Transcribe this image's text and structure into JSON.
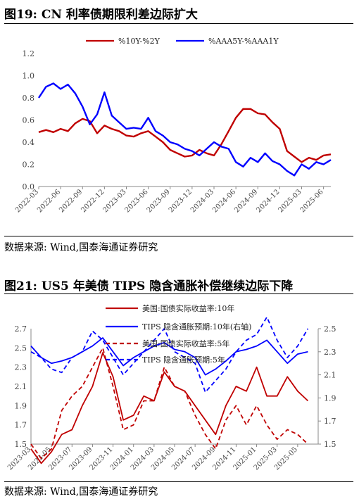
{
  "figures": [
    {
      "title": "图19:  CN 利率债期限利差边际扩大",
      "source": "数据来源:  Wind,国泰海通证券研究"
    },
    {
      "title": "图21:  US5 年美债 TIPS 隐含通胀补偿继续边际下降",
      "source": "数据来源:  Wind,国泰海通证券研究"
    }
  ],
  "chart_data": [
    {
      "type": "line",
      "title": "",
      "xlabel": "",
      "ylabel": "",
      "ylim": [
        0,
        1.2
      ],
      "yticks": [
        "0.0",
        "0.2",
        "0.4",
        "0.6",
        "0.8",
        "1.0",
        "1.2"
      ],
      "xticks": [
        "2022-03",
        "2022-06",
        "2022-09",
        "2022-12",
        "2023-03",
        "2023-06",
        "2023-09",
        "2023-12",
        "2024-03",
        "2024-06",
        "2024-09",
        "2024-12",
        "2025-03",
        "2025-06"
      ],
      "grid": false,
      "legend": "top",
      "series": [
        {
          "name": "%10Y-%2Y",
          "color": "#c00000",
          "points": [
            [
              "2022-03",
              0.49
            ],
            [
              "2022-04",
              0.51
            ],
            [
              "2022-05",
              0.49
            ],
            [
              "2022-06",
              0.52
            ],
            [
              "2022-07",
              0.5
            ],
            [
              "2022-08",
              0.57
            ],
            [
              "2022-09",
              0.61
            ],
            [
              "2022-10",
              0.59
            ],
            [
              "2022-11",
              0.48
            ],
            [
              "2022-12",
              0.55
            ],
            [
              "2023-01",
              0.52
            ],
            [
              "2023-02",
              0.5
            ],
            [
              "2023-03",
              0.46
            ],
            [
              "2023-04",
              0.45
            ],
            [
              "2023-05",
              0.48
            ],
            [
              "2023-06",
              0.5
            ],
            [
              "2023-07",
              0.45
            ],
            [
              "2023-08",
              0.4
            ],
            [
              "2023-09",
              0.33
            ],
            [
              "2023-10",
              0.3
            ],
            [
              "2023-11",
              0.27
            ],
            [
              "2023-12",
              0.28
            ],
            [
              "2024-01",
              0.33
            ],
            [
              "2024-02",
              0.3
            ],
            [
              "2024-03",
              0.28
            ],
            [
              "2024-04",
              0.38
            ],
            [
              "2024-05",
              0.5
            ],
            [
              "2024-06",
              0.62
            ],
            [
              "2024-07",
              0.7
            ],
            [
              "2024-08",
              0.7
            ],
            [
              "2024-09",
              0.66
            ],
            [
              "2024-10",
              0.65
            ],
            [
              "2024-11",
              0.58
            ],
            [
              "2024-12",
              0.52
            ],
            [
              "2025-01",
              0.32
            ],
            [
              "2025-02",
              0.27
            ],
            [
              "2025-03",
              0.22
            ],
            [
              "2025-04",
              0.26
            ],
            [
              "2025-05",
              0.24
            ],
            [
              "2025-06",
              0.28
            ],
            [
              "2025-07",
              0.29
            ]
          ]
        },
        {
          "name": "%AAA5Y-%AAA1Y",
          "color": "#0000ff",
          "points": [
            [
              "2022-03",
              0.8
            ],
            [
              "2022-04",
              0.9
            ],
            [
              "2022-05",
              0.93
            ],
            [
              "2022-06",
              0.88
            ],
            [
              "2022-07",
              0.92
            ],
            [
              "2022-08",
              0.84
            ],
            [
              "2022-09",
              0.72
            ],
            [
              "2022-10",
              0.56
            ],
            [
              "2022-11",
              0.65
            ],
            [
              "2022-12",
              0.85
            ],
            [
              "2023-01",
              0.64
            ],
            [
              "2023-02",
              0.58
            ],
            [
              "2023-03",
              0.52
            ],
            [
              "2023-04",
              0.53
            ],
            [
              "2023-05",
              0.52
            ],
            [
              "2023-06",
              0.62
            ],
            [
              "2023-07",
              0.5
            ],
            [
              "2023-08",
              0.46
            ],
            [
              "2023-09",
              0.4
            ],
            [
              "2023-10",
              0.38
            ],
            [
              "2023-11",
              0.34
            ],
            [
              "2023-12",
              0.32
            ],
            [
              "2024-01",
              0.28
            ],
            [
              "2024-02",
              0.34
            ],
            [
              "2024-03",
              0.4
            ],
            [
              "2024-04",
              0.36
            ],
            [
              "2024-05",
              0.34
            ],
            [
              "2024-06",
              0.22
            ],
            [
              "2024-07",
              0.18
            ],
            [
              "2024-08",
              0.26
            ],
            [
              "2024-09",
              0.22
            ],
            [
              "2024-10",
              0.3
            ],
            [
              "2024-11",
              0.23
            ],
            [
              "2024-12",
              0.2
            ],
            [
              "2025-01",
              0.14
            ],
            [
              "2025-02",
              0.1
            ],
            [
              "2025-03",
              0.2
            ],
            [
              "2025-04",
              0.16
            ],
            [
              "2025-05",
              0.22
            ],
            [
              "2025-06",
              0.2
            ],
            [
              "2025-07",
              0.24
            ]
          ]
        }
      ]
    },
    {
      "type": "line",
      "title": "",
      "xlabel": "",
      "ylabel": "",
      "ylim": [
        1.5,
        2.7
      ],
      "y2lim": [
        1.5,
        2.5
      ],
      "yticks": [
        "1.5",
        "1.7",
        "1.9",
        "2.1",
        "2.3",
        "2.5",
        "2.7"
      ],
      "y2ticks": [
        "1.5",
        "1.7",
        "1.9",
        "2.1",
        "2.3",
        "2.5"
      ],
      "xticks": [
        "2023-03",
        "2023-05",
        "2023-07",
        "2023-09",
        "2023-11",
        "2024-01",
        "2024-03",
        "2024-05",
        "2024-07",
        "2024-09",
        "2024-11",
        "2025-01",
        "2025-03",
        "2025-05"
      ],
      "grid": false,
      "legend": "top",
      "series": [
        {
          "name": "美国:国债实际收益率:10年",
          "color": "#c00000",
          "style": "solid",
          "axis": "left",
          "points": [
            [
              "2023-03",
              1.45
            ],
            [
              "2023-04",
              1.3
            ],
            [
              "2023-05",
              1.42
            ],
            [
              "2023-06",
              1.6
            ],
            [
              "2023-07",
              1.65
            ],
            [
              "2023-08",
              1.9
            ],
            [
              "2023-09",
              2.1
            ],
            [
              "2023-10",
              2.45
            ],
            [
              "2023-11",
              2.2
            ],
            [
              "2023-12",
              1.75
            ],
            [
              "2024-01",
              1.8
            ],
            [
              "2024-02",
              2.0
            ],
            [
              "2024-03",
              1.95
            ],
            [
              "2024-04",
              2.25
            ],
            [
              "2024-05",
              2.1
            ],
            [
              "2024-06",
              2.05
            ],
            [
              "2024-07",
              1.9
            ],
            [
              "2024-08",
              1.75
            ],
            [
              "2024-09",
              1.6
            ],
            [
              "2024-10",
              1.9
            ],
            [
              "2024-11",
              2.1
            ],
            [
              "2024-12",
              2.05
            ],
            [
              "2025-01",
              2.3
            ],
            [
              "2025-02",
              2.0
            ],
            [
              "2025-03",
              2.0
            ],
            [
              "2025-04",
              2.2
            ],
            [
              "2025-05",
              2.05
            ],
            [
              "2025-06",
              1.95
            ]
          ]
        },
        {
          "name": "TIPS 隐含通胀预期:10年(右轴)",
          "color": "#0000ff",
          "style": "solid",
          "axis": "right",
          "points": [
            [
              "2023-03",
              2.35
            ],
            [
              "2023-04",
              2.25
            ],
            [
              "2023-05",
              2.2
            ],
            [
              "2023-06",
              2.22
            ],
            [
              "2023-07",
              2.25
            ],
            [
              "2023-08",
              2.3
            ],
            [
              "2023-09",
              2.35
            ],
            [
              "2023-10",
              2.42
            ],
            [
              "2023-11",
              2.3
            ],
            [
              "2023-12",
              2.18
            ],
            [
              "2024-01",
              2.25
            ],
            [
              "2024-02",
              2.3
            ],
            [
              "2024-03",
              2.35
            ],
            [
              "2024-04",
              2.38
            ],
            [
              "2024-05",
              2.32
            ],
            [
              "2024-06",
              2.3
            ],
            [
              "2024-07",
              2.25
            ],
            [
              "2024-08",
              2.1
            ],
            [
              "2024-09",
              2.15
            ],
            [
              "2024-10",
              2.22
            ],
            [
              "2024-11",
              2.3
            ],
            [
              "2024-12",
              2.32
            ],
            [
              "2025-01",
              2.35
            ],
            [
              "2025-02",
              2.4
            ],
            [
              "2025-03",
              2.3
            ],
            [
              "2025-04",
              2.2
            ],
            [
              "2025-05",
              2.28
            ],
            [
              "2025-06",
              2.3
            ]
          ]
        },
        {
          "name": "美国:国债实际收益率:5年",
          "color": "#c00000",
          "style": "dashed",
          "axis": "left",
          "points": [
            [
              "2023-03",
              1.5
            ],
            [
              "2023-04",
              1.35
            ],
            [
              "2023-05",
              1.45
            ],
            [
              "2023-06",
              1.85
            ],
            [
              "2023-07",
              2.0
            ],
            [
              "2023-08",
              2.1
            ],
            [
              "2023-09",
              2.3
            ],
            [
              "2023-10",
              2.5
            ],
            [
              "2023-11",
              2.1
            ],
            [
              "2023-12",
              1.65
            ],
            [
              "2024-01",
              1.7
            ],
            [
              "2024-02",
              1.95
            ],
            [
              "2024-03",
              1.95
            ],
            [
              "2024-04",
              2.3
            ],
            [
              "2024-05",
              2.1
            ],
            [
              "2024-06",
              2.05
            ],
            [
              "2024-07",
              1.8
            ],
            [
              "2024-08",
              1.6
            ],
            [
              "2024-09",
              1.45
            ],
            [
              "2024-10",
              1.75
            ],
            [
              "2024-11",
              1.9
            ],
            [
              "2024-12",
              1.7
            ],
            [
              "2025-01",
              1.9
            ],
            [
              "2025-02",
              1.7
            ],
            [
              "2025-03",
              1.55
            ],
            [
              "2025-04",
              1.65
            ],
            [
              "2025-05",
              1.6
            ],
            [
              "2025-06",
              1.5
            ]
          ]
        },
        {
          "name": "TIPS 隐含通胀预期:5年",
          "color": "#0000ff",
          "style": "dashed",
          "axis": "right",
          "points": [
            [
              "2023-03",
              2.3
            ],
            [
              "2023-04",
              2.25
            ],
            [
              "2023-05",
              2.15
            ],
            [
              "2023-06",
              2.12
            ],
            [
              "2023-07",
              2.25
            ],
            [
              "2023-08",
              2.3
            ],
            [
              "2023-09",
              2.48
            ],
            [
              "2023-10",
              2.4
            ],
            [
              "2023-11",
              2.25
            ],
            [
              "2023-12",
              2.1
            ],
            [
              "2024-01",
              2.2
            ],
            [
              "2024-02",
              2.3
            ],
            [
              "2024-03",
              2.4
            ],
            [
              "2024-04",
              2.5
            ],
            [
              "2024-05",
              2.3
            ],
            [
              "2024-06",
              2.25
            ],
            [
              "2024-07",
              2.2
            ],
            [
              "2024-08",
              1.95
            ],
            [
              "2024-09",
              2.05
            ],
            [
              "2024-10",
              2.15
            ],
            [
              "2024-11",
              2.3
            ],
            [
              "2024-12",
              2.4
            ],
            [
              "2025-01",
              2.45
            ],
            [
              "2025-02",
              2.6
            ],
            [
              "2025-03",
              2.4
            ],
            [
              "2025-04",
              2.25
            ],
            [
              "2025-05",
              2.35
            ],
            [
              "2025-06",
              2.5
            ]
          ]
        }
      ]
    }
  ]
}
